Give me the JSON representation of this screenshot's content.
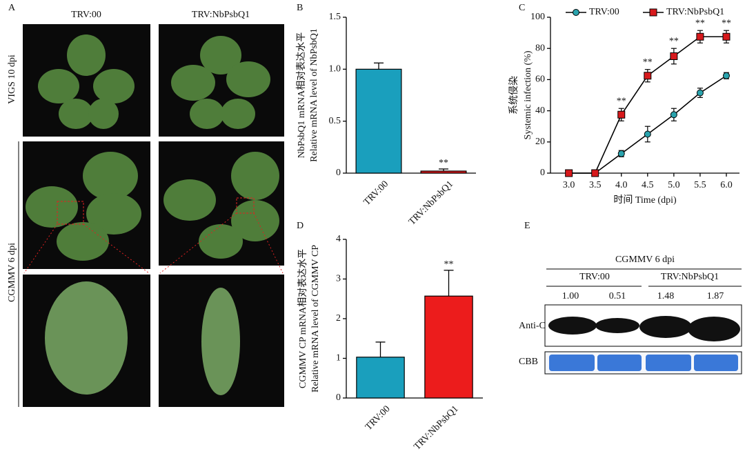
{
  "panels": [
    "A",
    "B",
    "C",
    "D",
    "E"
  ],
  "photos": {
    "columns": [
      "TRV:00",
      "TRV:NbPsbQ1"
    ],
    "rows": [
      "VIGS 10 dpi",
      "CGMMV 6 dpi"
    ]
  },
  "chart_data": [
    {
      "type": "bar",
      "ylabel": [
        "NbPsbQ1 mRNA相对表达水平",
        "Relative mRNA level of NbPsbQ1"
      ],
      "categories": [
        "TRV:00",
        "TRV:NbPsbQ1"
      ],
      "values": [
        1.0,
        0.02
      ],
      "errors": [
        0.06,
        0.02
      ],
      "colors": [
        "#1a9fbd",
        "#e31a1c"
      ],
      "annotations": [
        null,
        "**"
      ],
      "ylim": [
        0,
        1.5
      ],
      "yticks": [
        0,
        0.5,
        {
          "value": 1,
          "label": "1.0"
        },
        1.5
      ]
    },
    {
      "type": "line",
      "xlabel": "时间 Time (dpi)",
      "ylabel": [
        "系统侵染",
        "Systemic infection (%)"
      ],
      "x": [
        3,
        3.5,
        4,
        4.5,
        5,
        5.5,
        6
      ],
      "series": [
        {
          "name": "TRV:00",
          "color": "#2aa3ad",
          "marker": "circle",
          "values": [
            0,
            0,
            12.5,
            25,
            37.5,
            51.5,
            62.5
          ],
          "errors": [
            0,
            0,
            2,
            5,
            4,
            3,
            2
          ],
          "annotations": [
            null,
            null,
            null,
            null,
            null,
            null,
            null
          ]
        },
        {
          "name": "TRV:NbPsbQ1",
          "color": "#d7191c",
          "marker": "square",
          "values": [
            0,
            0,
            37.5,
            62.5,
            75,
            87.5,
            87.5
          ],
          "errors": [
            0,
            0,
            4,
            4,
            5,
            4,
            4
          ],
          "annotations": [
            null,
            null,
            "**",
            "**",
            "**",
            "**",
            "**"
          ]
        }
      ],
      "xlim": [
        2.65,
        6.25
      ],
      "xticks": [
        {
          "value": 3,
          "label": "3.0"
        },
        3.5,
        {
          "value": 4,
          "label": "4.0"
        },
        4.5,
        {
          "value": 5,
          "label": "5.0"
        },
        5.5,
        {
          "value": 6,
          "label": "6.0"
        }
      ],
      "ylim": [
        0,
        100
      ],
      "yticks": [
        0,
        20,
        40,
        60,
        80,
        100
      ]
    },
    {
      "type": "bar",
      "ylabel": [
        "CGMMV CP mRNA相对表达水平",
        "Relative mRNA level of CGMMV CP"
      ],
      "categories": [
        "TRV:00",
        "TRV:NbPsbQ1"
      ],
      "values": [
        1.03,
        2.57
      ],
      "errors": [
        0.38,
        0.65
      ],
      "colors": [
        "#1a9fbd",
        "#ec1c1c"
      ],
      "annotations": [
        null,
        "**"
      ],
      "ylim": [
        0,
        4
      ],
      "yticks": [
        0,
        1,
        2,
        3,
        4
      ]
    }
  ],
  "blot": {
    "title": "CGMMV 6 dpi",
    "groups": [
      "TRV:00",
      "TRV:NbPsbQ1"
    ],
    "ratios": [
      "1.00",
      "0.51",
      "1.48",
      "1.87"
    ],
    "rows": [
      "Anti-CP",
      "CBB"
    ]
  }
}
